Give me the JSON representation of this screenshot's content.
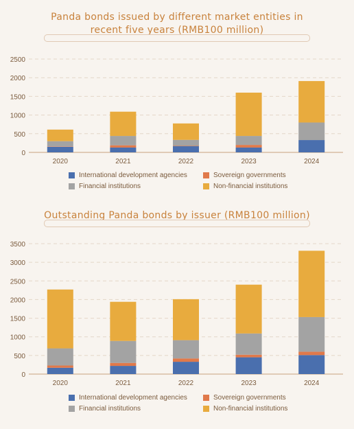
{
  "colors": {
    "International development agencies": "#4a6fae",
    "Sovereign governments": "#e0794a",
    "Financial institutions": "#a3a3a3",
    "Non-financial institutions": "#e8ab3e",
    "axis_text": "#7a5a3c",
    "title": "#c8823c",
    "grid": "#e3d6c8"
  },
  "legend": [
    "International development agencies",
    "Sovereign governments",
    "Financial institutions",
    "Non-financial institutions"
  ],
  "chart_data": [
    {
      "type": "bar",
      "stacked": true,
      "title": "Panda bonds issued by different market entities in recent five years (RMB100 million)",
      "title_lines": [
        "Panda bonds issued by different market entities in",
        "recent five years (RMB100 million)"
      ],
      "categories": [
        "2020",
        "2021",
        "2022",
        "2023",
        "2024"
      ],
      "ylim": [
        0,
        2500
      ],
      "yticks": [
        0,
        500,
        1000,
        1500,
        2000,
        2500
      ],
      "grid": true,
      "legend_position": "bottom",
      "series": [
        {
          "name": "International development agencies",
          "values": [
            150,
            130,
            165,
            130,
            330
          ]
        },
        {
          "name": "Sovereign governments",
          "values": [
            10,
            60,
            10,
            70,
            0
          ]
        },
        {
          "name": "Financial institutions",
          "values": [
            140,
            250,
            160,
            240,
            470
          ]
        },
        {
          "name": "Non-financial institutions",
          "values": [
            310,
            650,
            440,
            1160,
            1110
          ]
        }
      ]
    },
    {
      "type": "bar",
      "stacked": true,
      "title": "Outstanding Panda bonds by issuer (RMB100 million)",
      "title_lines": [
        "Outstanding Panda bonds by issuer (RMB100 million)"
      ],
      "categories": [
        "2020",
        "2021",
        "2022",
        "2023",
        "2024"
      ],
      "ylim": [
        0,
        3500
      ],
      "yticks": [
        0,
        500,
        1000,
        1500,
        2000,
        2500,
        3000,
        3500
      ],
      "grid": true,
      "legend_position": "bottom",
      "series": [
        {
          "name": "International development agencies",
          "values": [
            170,
            220,
            330,
            450,
            510
          ]
        },
        {
          "name": "Sovereign governments",
          "values": [
            60,
            80,
            90,
            70,
            90
          ]
        },
        {
          "name": "Financial institutions",
          "values": [
            460,
            590,
            490,
            570,
            930
          ]
        },
        {
          "name": "Non-financial institutions",
          "values": [
            1580,
            1050,
            1100,
            1310,
            1780
          ]
        }
      ]
    }
  ]
}
